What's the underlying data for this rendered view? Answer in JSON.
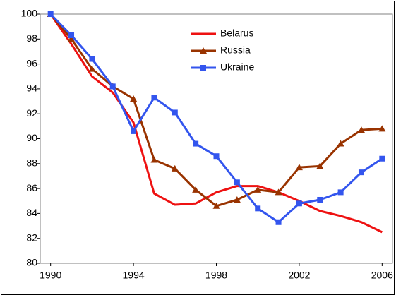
{
  "chart_data": {
    "type": "line",
    "x": [
      1990,
      1991,
      1992,
      1993,
      1994,
      1995,
      1996,
      1997,
      1998,
      1999,
      2000,
      2001,
      2002,
      2003,
      2004,
      2005,
      2006
    ],
    "series": [
      {
        "name": "Belarus",
        "color": "#ee1111",
        "marker": "none",
        "values": [
          100,
          97.6,
          95.0,
          93.7,
          91.3,
          85.6,
          84.7,
          84.8,
          85.7,
          86.2,
          86.2,
          85.7,
          85.0,
          84.2,
          83.8,
          83.3,
          82.5
        ]
      },
      {
        "name": "Russia",
        "color": "#993300",
        "marker": "triangle",
        "values": [
          100,
          98.0,
          95.6,
          94.2,
          93.2,
          88.3,
          87.6,
          85.9,
          84.6,
          85.1,
          85.9,
          85.7,
          87.7,
          87.8,
          89.6,
          90.7,
          90.8
        ]
      },
      {
        "name": "Ukraine",
        "color": "#3355ee",
        "marker": "square",
        "values": [
          100,
          98.3,
          96.4,
          94.2,
          90.6,
          93.3,
          92.1,
          89.6,
          88.6,
          86.5,
          84.4,
          83.3,
          84.8,
          85.1,
          85.7,
          87.3,
          88.4
        ]
      }
    ],
    "xlim": [
      1989.5,
      2006.5
    ],
    "xticks": [
      1990,
      1994,
      1998,
      2002,
      2006
    ],
    "ylim": [
      80,
      100
    ],
    "yticks": [
      80,
      82,
      84,
      86,
      88,
      90,
      92,
      94,
      96,
      98,
      100
    ],
    "grid": false,
    "legend": "top"
  }
}
